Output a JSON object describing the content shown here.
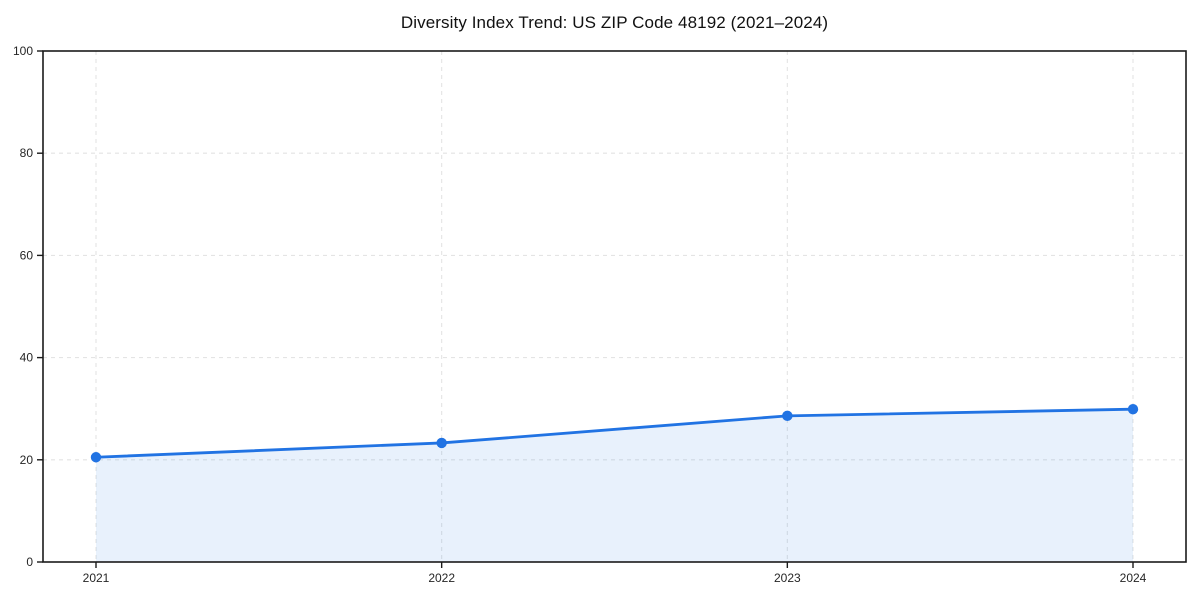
{
  "page": {
    "background": "#ffffff"
  },
  "chart_data": {
    "type": "area",
    "title": "Diversity Index Trend: US ZIP Code 48192 (2021–2024)",
    "categories": [
      "2021",
      "2022",
      "2023",
      "2024"
    ],
    "values": [
      20.5,
      23.3,
      28.6,
      29.9
    ],
    "xlabel": "",
    "ylabel": "",
    "ylim": [
      0,
      100
    ],
    "yticks": [
      0,
      20,
      40,
      60,
      80,
      100
    ],
    "grid": true,
    "grid_style": "dashed",
    "legend": false,
    "colors": {
      "line": "#2173e3",
      "marker": "#2173e3",
      "fill": "#2173e3",
      "fill_opacity": 0.1,
      "grid": "#e4e4e4",
      "axis": "#1a1a1a",
      "tick_label": "#262626",
      "title": "#111111"
    }
  }
}
